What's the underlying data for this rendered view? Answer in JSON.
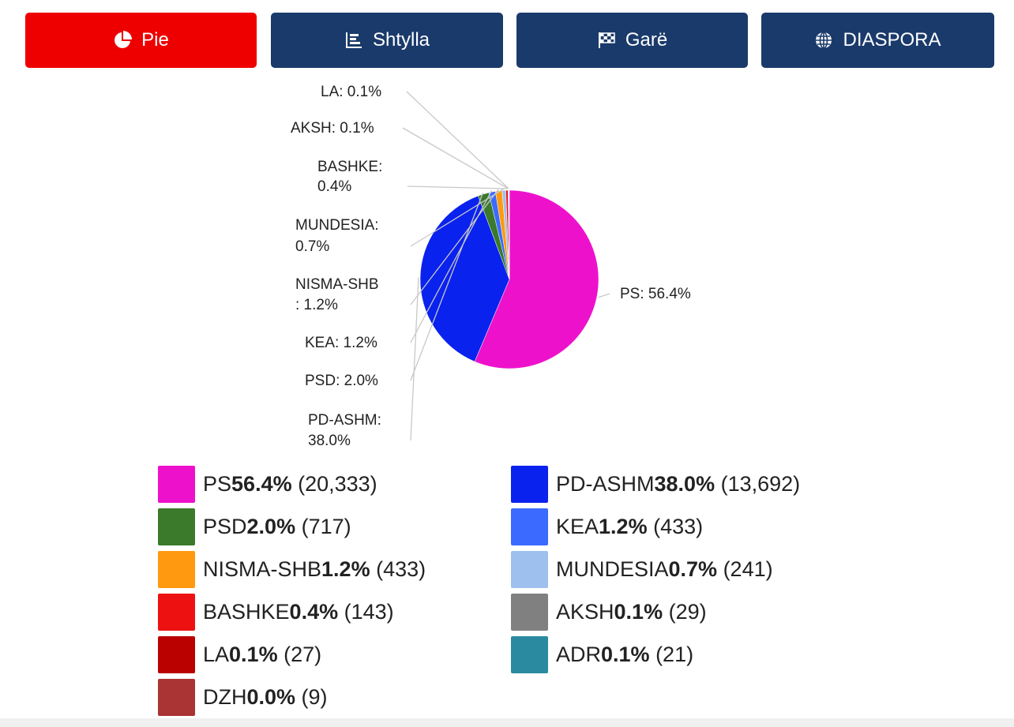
{
  "tabs": [
    {
      "label": "Pie",
      "icon": "pie-chart-icon",
      "color": "#ee0000",
      "active": true
    },
    {
      "label": "Shtylla",
      "icon": "bar-chart-icon",
      "color": "#1a3a6b",
      "active": false
    },
    {
      "label": "Garë",
      "icon": "checkered-flag-icon",
      "color": "#1a3a6b",
      "active": false
    },
    {
      "label": "DIASPORA",
      "icon": "globe-icon",
      "color": "#1a3a6b",
      "active": false
    }
  ],
  "chart_data": {
    "type": "pie",
    "title": "",
    "categories": [
      "PS",
      "PD-ASHM",
      "PSD",
      "KEA",
      "NISMA-SHB",
      "MUNDESIA",
      "BASHKE",
      "AKSH",
      "LA",
      "ADR",
      "DZH"
    ],
    "values": [
      20333,
      13692,
      717,
      433,
      433,
      241,
      143,
      29,
      27,
      21,
      9
    ],
    "percent_labels": [
      "56.4%",
      "38.0%",
      "2.0%",
      "1.2%",
      "1.2%",
      "0.7%",
      "0.4%",
      "0.1%",
      "0.1%",
      "0.1%",
      "0.0%"
    ],
    "count_labels": [
      "(20,333)",
      "(13,692)",
      "(717)",
      "(433)",
      "(433)",
      "(241)",
      "(143)",
      "(29)",
      "(27)",
      "(21)",
      "(9)"
    ],
    "colors": [
      "#ee11cc",
      "#0a22ee",
      "#3a7a2a",
      "#3a6aff",
      "#ff9a10",
      "#9ec0ee",
      "#ee1111",
      "#808080",
      "#bb0000",
      "#2a8aa0",
      "#aa3333"
    ],
    "slice_labels": [
      [
        "PS: 56.4%"
      ],
      [
        "PD-ASHM:",
        "38.0%"
      ],
      [
        "PSD: 2.0%"
      ],
      [
        "KEA: 1.2%"
      ],
      [
        "NISMA-SHB",
        ": 1.2%"
      ],
      [
        "MUNDESIA:",
        "0.7%"
      ],
      [
        "BASHKE:",
        "0.4%"
      ],
      [
        "AKSH: 0.1%"
      ],
      [
        "LA: 0.1%"
      ]
    ],
    "legend_placement": "bottom"
  }
}
